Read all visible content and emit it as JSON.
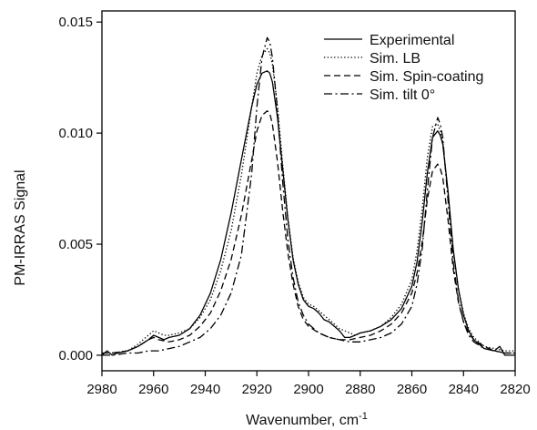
{
  "chart_data": {
    "type": "line",
    "title": "",
    "xlabel": "Wavenumber, cm",
    "xlabel_superscript": "-1",
    "ylabel": "PM-IRRAS Signal",
    "xlim": [
      2980,
      2820
    ],
    "ylim": [
      -0.0007,
      0.0155
    ],
    "x_reversed": true,
    "grid": false,
    "legend_placement": "top-right",
    "x_ticks": [
      2980,
      2960,
      2940,
      2920,
      2900,
      2880,
      2860,
      2840,
      2820
    ],
    "y_ticks": [
      {
        "value": 0.0,
        "label": "0.000"
      },
      {
        "value": 0.005,
        "label": "0.005"
      },
      {
        "value": 0.01,
        "label": "0.010"
      },
      {
        "value": 0.015,
        "label": "0.015"
      }
    ],
    "series": [
      {
        "name": "Experimental",
        "dash": "solid",
        "x": [
          2980,
          2978,
          2976,
          2974,
          2970,
          2966,
          2962,
          2960,
          2958,
          2956,
          2954,
          2950,
          2946,
          2942,
          2938,
          2934,
          2930,
          2926,
          2922,
          2920,
          2918,
          2916,
          2915,
          2914,
          2912,
          2910,
          2908,
          2906,
          2904,
          2902,
          2900,
          2898,
          2896,
          2894,
          2892,
          2890,
          2888,
          2886,
          2884,
          2882,
          2880,
          2876,
          2872,
          2868,
          2864,
          2860,
          2858,
          2856,
          2854,
          2852,
          2850,
          2849,
          2848,
          2846,
          2844,
          2842,
          2840,
          2838,
          2836,
          2832,
          2828,
          2826,
          2824,
          2820
        ],
        "y": [
          0.0,
          0.0002,
          0.0,
          0.0001,
          0.0002,
          0.0004,
          0.0007,
          0.0009,
          0.0008,
          0.0007,
          0.0008,
          0.0009,
          0.0012,
          0.0018,
          0.0028,
          0.0043,
          0.0064,
          0.0088,
          0.0112,
          0.0122,
          0.0127,
          0.0128,
          0.0127,
          0.0123,
          0.0107,
          0.0084,
          0.0061,
          0.0043,
          0.0032,
          0.0025,
          0.0022,
          0.0021,
          0.0019,
          0.0016,
          0.0015,
          0.0013,
          0.0011,
          0.0008,
          0.0008,
          0.0009,
          0.001,
          0.0011,
          0.0013,
          0.0016,
          0.0021,
          0.0031,
          0.0042,
          0.006,
          0.0082,
          0.0098,
          0.0101,
          0.0099,
          0.0095,
          0.0074,
          0.0048,
          0.003,
          0.0018,
          0.0011,
          0.0007,
          0.0003,
          0.0002,
          0.0004,
          0.0,
          0.0
        ]
      },
      {
        "name": "Sim. LB",
        "dash": "dotted",
        "x": [
          2980,
          2976,
          2970,
          2966,
          2962,
          2960,
          2958,
          2956,
          2954,
          2950,
          2946,
          2942,
          2938,
          2934,
          2930,
          2926,
          2922,
          2920,
          2918,
          2916,
          2915,
          2914,
          2912,
          2910,
          2908,
          2906,
          2904,
          2902,
          2900,
          2898,
          2896,
          2894,
          2892,
          2890,
          2888,
          2886,
          2884,
          2882,
          2880,
          2876,
          2872,
          2868,
          2864,
          2860,
          2858,
          2856,
          2854,
          2852,
          2850,
          2849,
          2848,
          2846,
          2844,
          2842,
          2840,
          2838,
          2836,
          2832,
          2828,
          2824,
          2820
        ],
        "y": [
          0.0001,
          0.0001,
          0.0002,
          0.0005,
          0.0009,
          0.0011,
          0.001,
          0.0009,
          0.0009,
          0.001,
          0.0012,
          0.0017,
          0.0025,
          0.0038,
          0.0056,
          0.0081,
          0.0112,
          0.0127,
          0.0135,
          0.0138,
          0.0136,
          0.0131,
          0.0112,
          0.0086,
          0.0062,
          0.0044,
          0.0033,
          0.0026,
          0.0023,
          0.0022,
          0.002,
          0.0018,
          0.0016,
          0.0014,
          0.0012,
          0.0011,
          0.001,
          0.0009,
          0.001,
          0.0011,
          0.0013,
          0.0017,
          0.0023,
          0.0034,
          0.0047,
          0.0066,
          0.0089,
          0.0103,
          0.0104,
          0.0101,
          0.0096,
          0.0073,
          0.0047,
          0.003,
          0.0019,
          0.0012,
          0.0008,
          0.0004,
          0.0003,
          0.0002,
          0.0002
        ]
      },
      {
        "name": "Sim. Spin-coating",
        "dash": "dashed",
        "x": [
          2980,
          2976,
          2970,
          2966,
          2962,
          2960,
          2958,
          2954,
          2950,
          2946,
          2942,
          2938,
          2934,
          2930,
          2926,
          2922,
          2920,
          2918,
          2916,
          2915,
          2914,
          2912,
          2910,
          2908,
          2906,
          2904,
          2902,
          2900,
          2896,
          2892,
          2888,
          2884,
          2880,
          2876,
          2872,
          2868,
          2864,
          2860,
          2858,
          2856,
          2854,
          2852,
          2850,
          2849,
          2848,
          2846,
          2844,
          2842,
          2840,
          2838,
          2836,
          2832,
          2828,
          2824,
          2820
        ],
        "y": [
          0.0001,
          0.0001,
          0.0002,
          0.0004,
          0.0007,
          0.0008,
          0.0007,
          0.0006,
          0.0007,
          0.0009,
          0.0013,
          0.0019,
          0.0029,
          0.0043,
          0.0063,
          0.0088,
          0.0101,
          0.0108,
          0.011,
          0.0109,
          0.0104,
          0.0087,
          0.0065,
          0.0046,
          0.0032,
          0.0022,
          0.0016,
          0.0013,
          0.001,
          0.0008,
          0.0007,
          0.0007,
          0.0008,
          0.0009,
          0.0011,
          0.0014,
          0.0019,
          0.0028,
          0.0037,
          0.0051,
          0.007,
          0.0083,
          0.0086,
          0.0084,
          0.008,
          0.0061,
          0.0039,
          0.0024,
          0.0015,
          0.001,
          0.0007,
          0.0004,
          0.0002,
          0.0001,
          0.0001
        ]
      },
      {
        "name": "Sim. tilt 0°",
        "dash": "dashdot",
        "x": [
          2980,
          2976,
          2970,
          2966,
          2962,
          2958,
          2954,
          2950,
          2946,
          2942,
          2938,
          2934,
          2930,
          2926,
          2922,
          2920,
          2918,
          2916,
          2915,
          2914,
          2912,
          2910,
          2908,
          2906,
          2904,
          2902,
          2900,
          2896,
          2892,
          2888,
          2884,
          2880,
          2876,
          2872,
          2868,
          2864,
          2860,
          2858,
          2856,
          2854,
          2852,
          2850,
          2849,
          2848,
          2846,
          2844,
          2842,
          2840,
          2838,
          2836,
          2832,
          2828,
          2824,
          2820
        ],
        "y": [
          0.0,
          0.0,
          0.0001,
          0.0001,
          0.0002,
          0.0002,
          0.0003,
          0.0004,
          0.0006,
          0.0008,
          0.0012,
          0.0018,
          0.0028,
          0.0045,
          0.0082,
          0.0112,
          0.0134,
          0.0143,
          0.0141,
          0.0134,
          0.011,
          0.0078,
          0.0052,
          0.0035,
          0.0024,
          0.0018,
          0.0014,
          0.001,
          0.0008,
          0.0007,
          0.0006,
          0.0006,
          0.0007,
          0.0008,
          0.001,
          0.0014,
          0.0022,
          0.0032,
          0.0048,
          0.0074,
          0.0098,
          0.0107,
          0.0104,
          0.0098,
          0.007,
          0.0042,
          0.0025,
          0.0015,
          0.0009,
          0.0006,
          0.0003,
          0.0002,
          0.0001,
          0.0001
        ]
      }
    ]
  }
}
